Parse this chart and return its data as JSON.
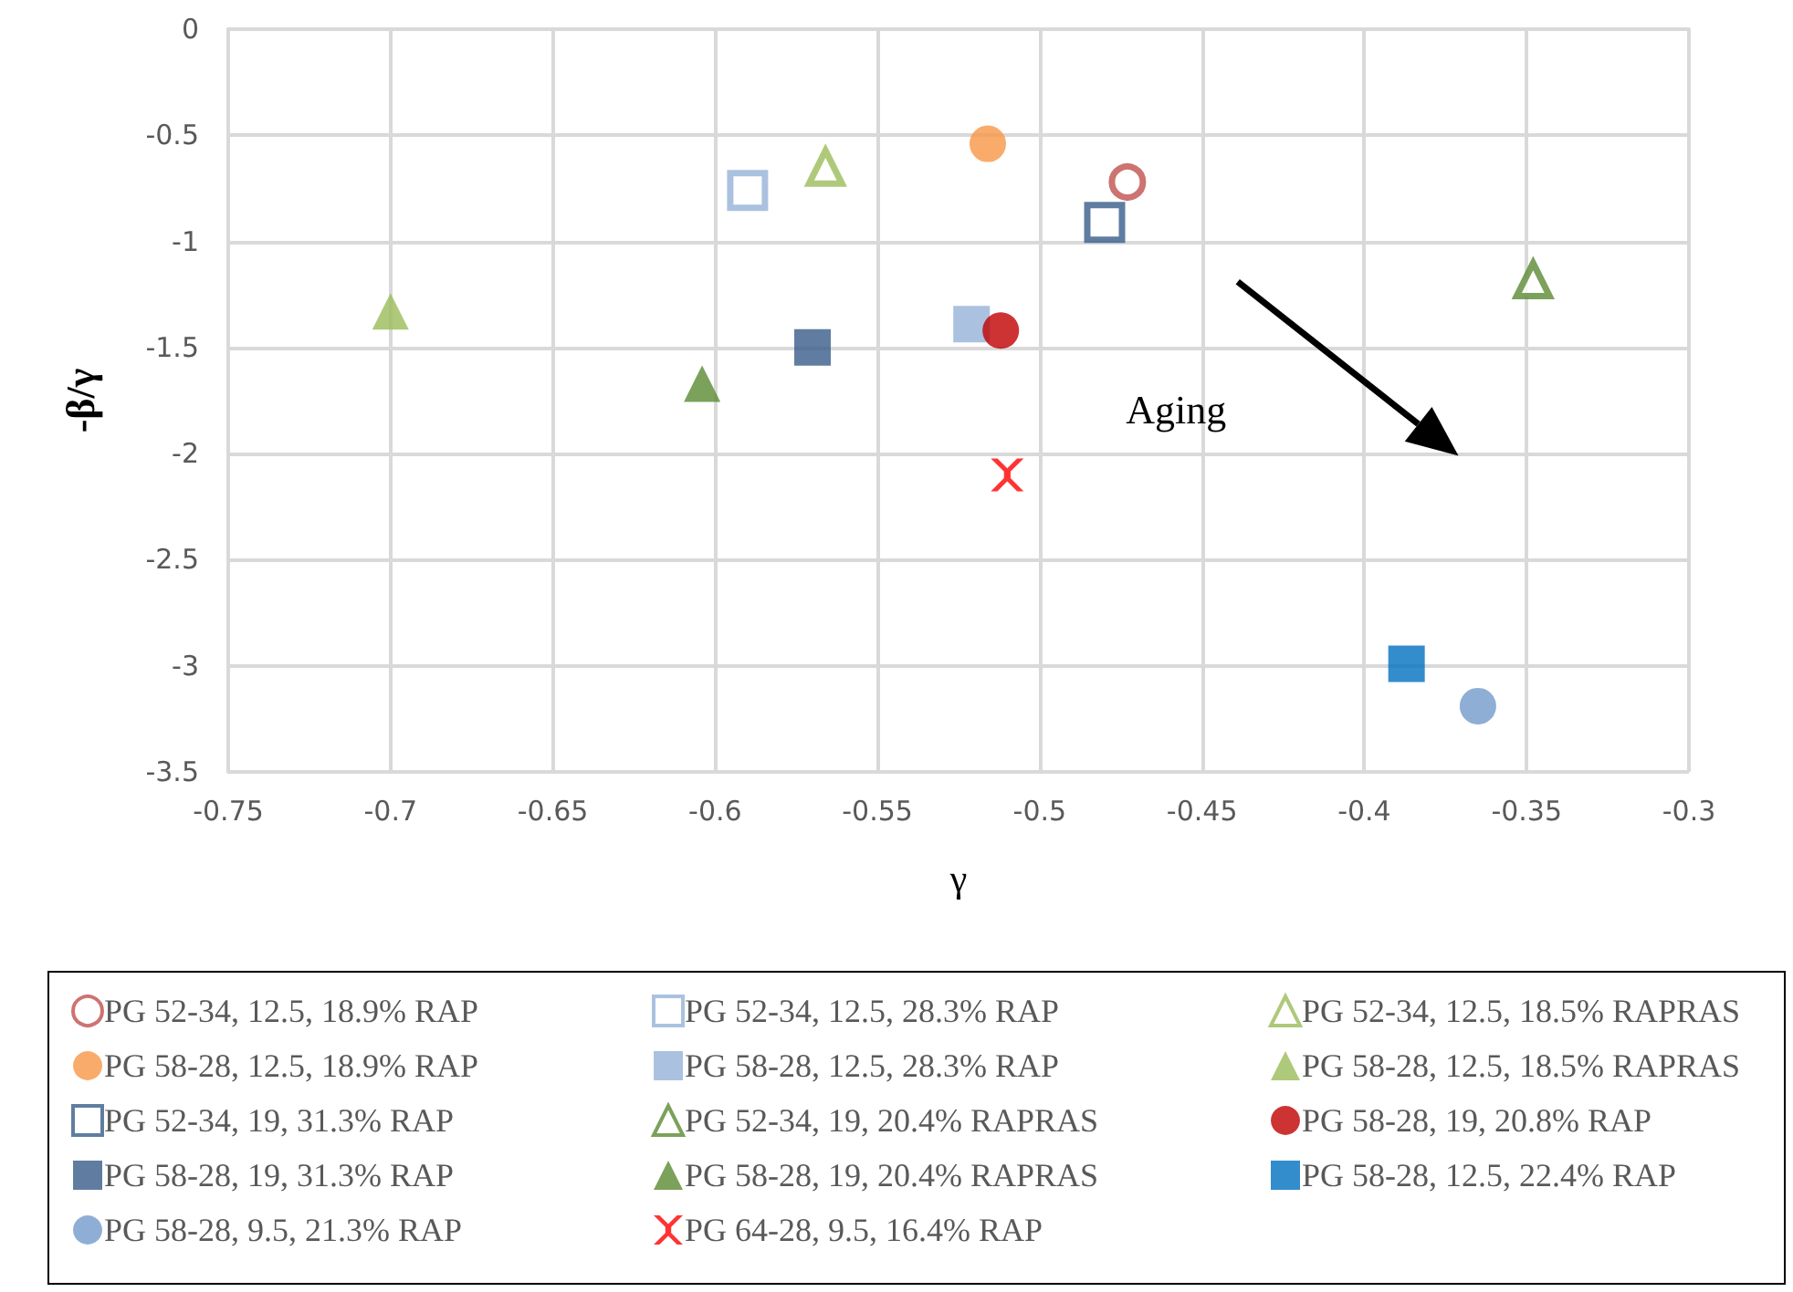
{
  "chart_data": {
    "type": "scatter",
    "xlabel": "γ",
    "ylabel": "-β/γ",
    "xlim": [
      -0.75,
      -0.3
    ],
    "xticks": [
      -0.75,
      -0.7,
      -0.65,
      -0.6,
      -0.55,
      -0.5,
      -0.45,
      -0.4,
      -0.35,
      -0.3
    ],
    "ylim": [
      -3.5,
      0
    ],
    "yticks": [
      -3.5,
      -3,
      -2.5,
      -2,
      -1.5,
      -1,
      -0.5,
      0
    ],
    "grid": true,
    "legend": "bottom",
    "annotations": [
      "Aging"
    ],
    "series": [
      {
        "name": "PG 52-34, 12.5, 18.9% RAP",
        "color": "#c0504d",
        "marker": "circle-open",
        "x": [
          -0.473
        ],
        "values": [
          -0.72
        ]
      },
      {
        "name": "PG 52-34, 12.5, 28.3% RAP",
        "color": "#95b3d7",
        "marker": "square-open",
        "x": [
          -0.59
        ],
        "values": [
          -0.76
        ]
      },
      {
        "name": "PG 52-34, 12.5, 18.5% RAPRAS",
        "color": "#9bbb59",
        "marker": "triangle-open",
        "x": [
          -0.566
        ],
        "values": [
          -0.65
        ]
      },
      {
        "name": "PG 58-28, 12.5, 18.9% RAP",
        "color": "#f79646",
        "marker": "circle",
        "x": [
          -0.516
        ],
        "values": [
          -0.54
        ]
      },
      {
        "name": "PG 58-28, 12.5, 28.3% RAP",
        "color": "#95b3d7",
        "marker": "square",
        "x": [
          -0.521
        ],
        "values": [
          -1.39
        ]
      },
      {
        "name": "PG 58-28, 12.5, 18.5% RAPRAS",
        "color": "#9bbb59",
        "marker": "triangle",
        "x": [
          -0.7
        ],
        "values": [
          -1.33
        ]
      },
      {
        "name": "PG 52-34, 19, 31.3% RAP",
        "color": "#385d8a",
        "marker": "square-open",
        "x": [
          -0.48
        ],
        "values": [
          -0.91
        ]
      },
      {
        "name": "PG 52-34, 19, 20.4% RAPRAS",
        "color": "#5a8a32",
        "marker": "triangle-open",
        "x": [
          -0.348
        ],
        "values": [
          -1.18
        ]
      },
      {
        "name": "PG 58-28, 19, 20.8% RAP",
        "color": "#c00000",
        "marker": "circle",
        "x": [
          -0.512
        ],
        "values": [
          -1.42
        ]
      },
      {
        "name": "PG 58-28, 19, 31.3% RAP",
        "color": "#385d8a",
        "marker": "square",
        "x": [
          -0.57
        ],
        "values": [
          -1.5
        ]
      },
      {
        "name": "PG 58-28, 19, 20.4% RAPRAS",
        "color": "#5a8a32",
        "marker": "triangle",
        "x": [
          -0.604
        ],
        "values": [
          -1.67
        ]
      },
      {
        "name": "PG 58-28, 12.5, 22.4% RAP",
        "color": "#0070c0",
        "marker": "square",
        "x": [
          -0.387
        ],
        "values": [
          -2.99
        ]
      },
      {
        "name": "PG 58-28, 9.5, 21.3% RAP",
        "color": "#729aca",
        "marker": "circle",
        "x": [
          -0.365
        ],
        "values": [
          -3.19
        ]
      },
      {
        "name": "PG 64-28, 9.5, 16.4% RAP",
        "color": "#ff0000",
        "marker": "cross",
        "x": [
          -0.51
        ],
        "values": [
          -2.1
        ]
      }
    ]
  }
}
